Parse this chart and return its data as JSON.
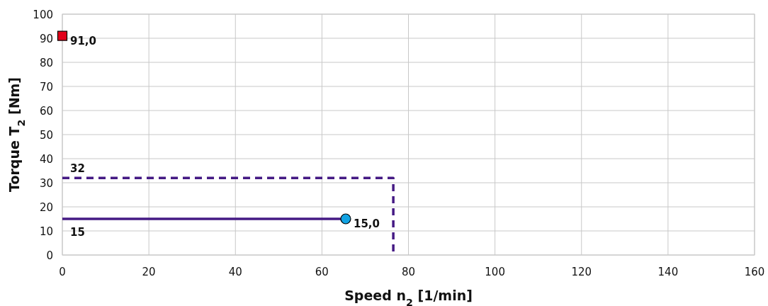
{
  "chart_data": {
    "type": "line",
    "xlabel": "Speed n$_{2}$ [1/min]",
    "ylabel": "Torque T$_{2}$ [Nm]",
    "xlim": [
      0,
      160
    ],
    "xticks": [
      0,
      20,
      40,
      60,
      80,
      100,
      120,
      140,
      160
    ],
    "ylim": [
      0,
      100
    ],
    "yticks": [
      0,
      10,
      20,
      30,
      40,
      50,
      60,
      70,
      80,
      90,
      100
    ],
    "grid": true,
    "series": [
      {
        "color": "#451a84",
        "line_style": "dashed",
        "marker": "none",
        "x": [
          0,
          76.5,
          76.5
        ],
        "values": [
          32,
          32,
          0
        ],
        "value_labels": [
          "32",
          null,
          null
        ]
      },
      {
        "color": "#451a84",
        "line_style": "solid",
        "marker": "none",
        "x": [
          0,
          65.5
        ],
        "values": [
          15,
          15
        ],
        "value_labels": [
          "15",
          null
        ]
      },
      {
        "type": "scatter",
        "color": "#12a3e3",
        "marker": "circle",
        "x": [
          65.5
        ],
        "values": [
          15
        ],
        "value_labels": [
          "15,0"
        ]
      },
      {
        "type": "scatter",
        "color": "#e2001a",
        "marker": "square",
        "x": [
          0
        ],
        "values": [
          91
        ],
        "value_labels": [
          "91,0"
        ]
      }
    ]
  }
}
